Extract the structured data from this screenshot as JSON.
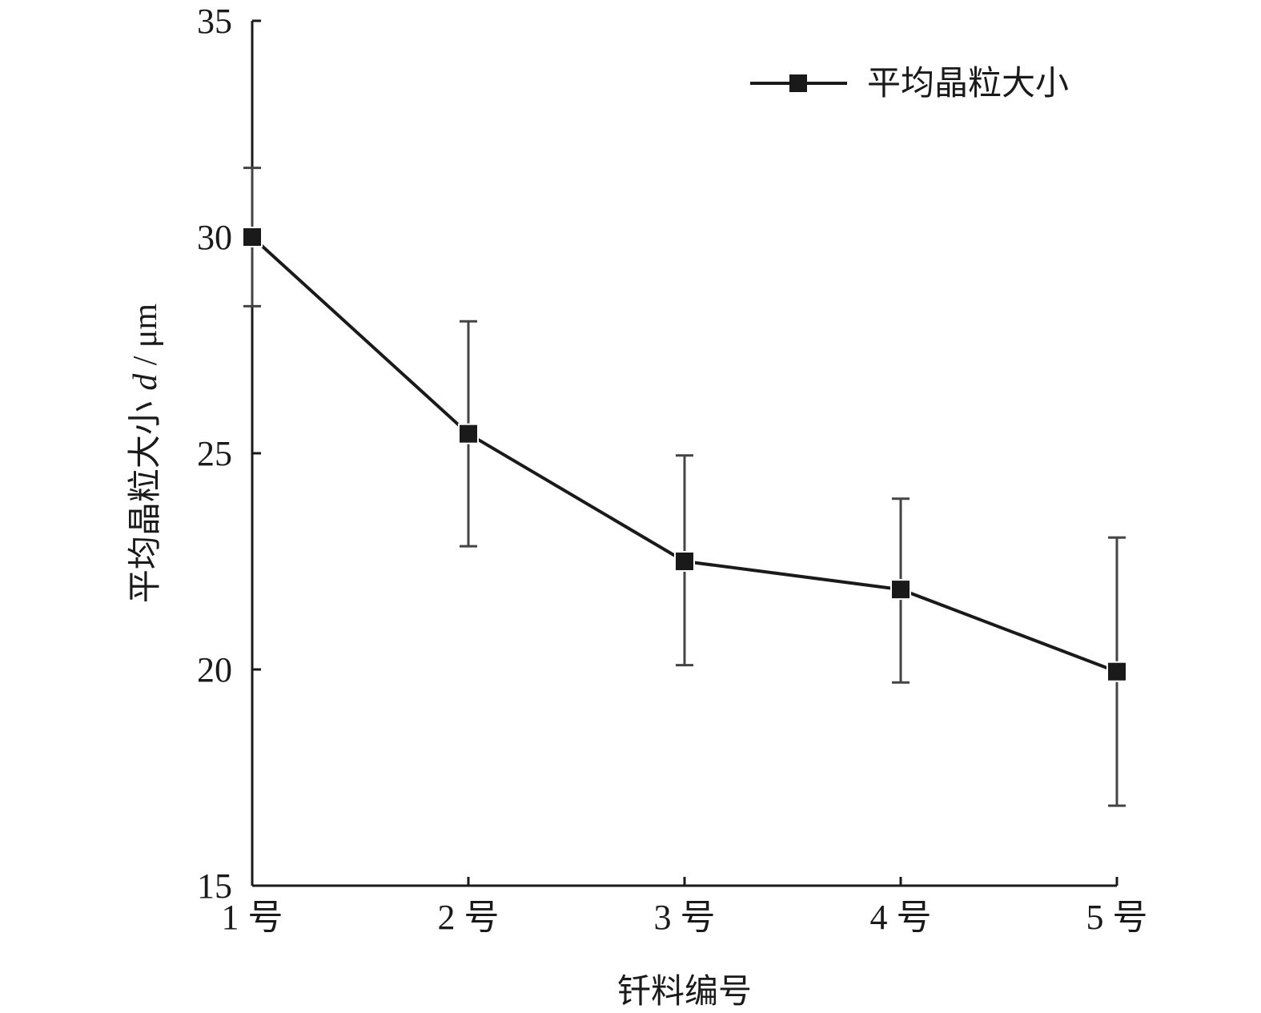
{
  "chart_data": {
    "type": "line",
    "categories": [
      "1 号",
      "2 号",
      "3 号",
      "4 号",
      "5 号"
    ],
    "series": [
      {
        "name": "平均晶粒大小",
        "values": [
          30.0,
          25.45,
          22.5,
          21.85,
          19.95
        ],
        "error_low": [
          28.4,
          22.85,
          20.1,
          19.7,
          16.85
        ],
        "error_high": [
          31.6,
          28.05,
          24.95,
          23.95,
          23.05
        ]
      }
    ],
    "xlabel": "钎料编号",
    "ylabel_prefix": "平均晶粒大小 ",
    "ylabel_symbol": "d",
    "ylabel_unit": " / μm",
    "ylim": [
      15,
      35
    ],
    "yticks": [
      "15",
      "20",
      "25",
      "30",
      "35"
    ],
    "grid": false,
    "legend_position": "top-right",
    "colors": {
      "line": "#1a1a1a",
      "marker": "#1a1a1a",
      "axis": "#1a1a1a"
    }
  }
}
